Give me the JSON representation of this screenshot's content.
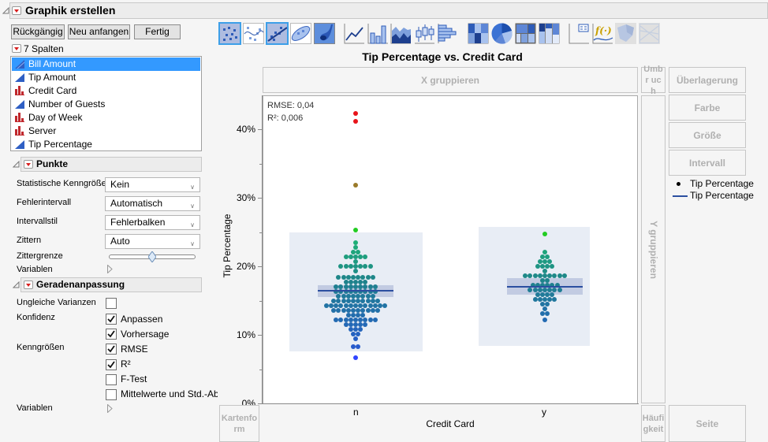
{
  "window": {
    "title": "Graphik erstellen",
    "buttons": {
      "undo": "Rückgängig",
      "restart": "Neu anfangen",
      "done": "Fertig"
    }
  },
  "columns": {
    "header": "7 Spalten",
    "items": [
      {
        "label": "Bill Amount",
        "type": "continuous",
        "selected": true
      },
      {
        "label": "Tip Amount",
        "type": "continuous",
        "selected": false
      },
      {
        "label": "Credit Card",
        "type": "nominal",
        "selected": false
      },
      {
        "label": "Number of Guests",
        "type": "continuous",
        "selected": false
      },
      {
        "label": "Day of Week",
        "type": "nominal",
        "selected": false
      },
      {
        "label": "Server",
        "type": "nominal",
        "selected": false
      },
      {
        "label": "Tip Percentage",
        "type": "continuous",
        "selected": false
      }
    ]
  },
  "points_panel": {
    "title": "Punkte",
    "rows": [
      {
        "label": "Statistische Kenngröße",
        "value": "Kein"
      },
      {
        "label": "Fehlerintervall",
        "value": "Automatisch"
      },
      {
        "label": "Intervallstil",
        "value": "Fehlerbalken"
      },
      {
        "label": "Zittern",
        "value": "Auto"
      }
    ],
    "jitter_limit_label": "Zittergrenze",
    "variables_label": "Variablen"
  },
  "fit_panel": {
    "title": "Geradenanpassung",
    "unequal_var_label": "Ungleiche Varianzen",
    "confidence_label": "Konfidenz",
    "stats_label": "Kenngrößen",
    "variables_label": "Variablen",
    "checks": [
      {
        "label": "Anpassen",
        "checked": true
      },
      {
        "label": "Vorhersage",
        "checked": true
      },
      {
        "label": "RMSE",
        "checked": true
      },
      {
        "label": "R²",
        "checked": true
      },
      {
        "label": "F-Test",
        "checked": false
      },
      {
        "label": "Mittelwerte und Std.-Ab",
        "checked": false
      }
    ]
  },
  "toolbar": {
    "tools": [
      "points",
      "smoother",
      "line-of-fit",
      "ellipse",
      "contour",
      "line",
      "bar",
      "area",
      "box-plot",
      "histogram",
      "heatmap",
      "pie",
      "treemap",
      "mosaic",
      "caption-box",
      "formula",
      "map-shapes",
      "parallel-plot"
    ],
    "active": [
      "points",
      "line-of-fit"
    ]
  },
  "zones": {
    "group_x": "X gruppieren",
    "wrap": "Umbr uch",
    "overlay": "Überlagerung",
    "color": "Farbe",
    "size": "Größe",
    "interval": "Intervall",
    "group_y": "Y gruppieren",
    "map_shape": "Kartenfo rm",
    "freq": "Häufi gkeit",
    "page": "Seite"
  },
  "legend": {
    "items": [
      {
        "symbol": "dot",
        "label": "Tip Percentage"
      },
      {
        "symbol": "line",
        "label": "Tip Percentage"
      }
    ]
  },
  "chart_data": {
    "type": "scatter",
    "title": "Tip Percentage vs. Credit Card",
    "xlabel": "Credit Card",
    "ylabel": "Tip Percentage",
    "categories": [
      "n",
      "y"
    ],
    "y_ticks": [
      "0%",
      "10%",
      "20%",
      "30%",
      "40%"
    ],
    "ylim": [
      0,
      0.45
    ],
    "annotations": {
      "rmse": "RMSE: 0,04",
      "r2": "R²: 0,006"
    },
    "fit_means": {
      "n": 0.163,
      "y": 0.171
    },
    "confidence_band": {
      "n": [
        0.156,
        0.171
      ],
      "y": [
        0.162,
        0.18
      ]
    },
    "prediction_band": {
      "n": [
        0.076,
        0.25
      ],
      "y": [
        0.083,
        0.258
      ]
    },
    "outliers_n": [
      0.423,
      0.412,
      0.318,
      0.252,
      0.066
    ],
    "outliers_y": [
      0.247
    ]
  }
}
